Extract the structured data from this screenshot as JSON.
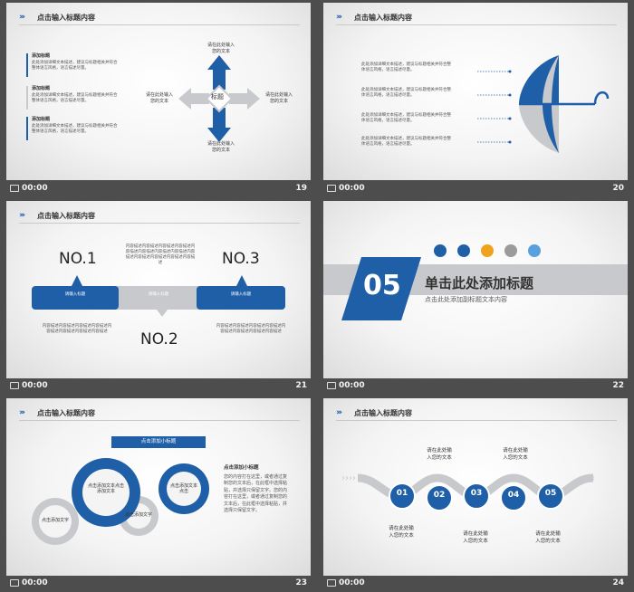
{
  "header_title": "点击输入标题内容",
  "time_label": "00:00",
  "slide19": {
    "number": "19",
    "items": [
      {
        "title": "添加标题",
        "text": "此处添加详细文本描述，建议与标题相关并符合整体语言风格，语言描述尽量。"
      },
      {
        "title": "添加标题",
        "text": "此处添加详细文本描述，建议与标题相关并符合整体语言风格，语言描述尽量。"
      },
      {
        "title": "添加标题",
        "text": "此处添加详细文本描述，建议与标题相关并符合整体语言风格，语言描述尽量。"
      }
    ],
    "center": "标题",
    "top": "请在此处输入您的文本",
    "left": "请在此处输入您的文本",
    "right": "请在此处输入您的文本",
    "bottom": "请在此处输入您的文本"
  },
  "slide20": {
    "number": "20",
    "items": [
      "此处添加详细文本描述，建议与标题相关并符合整体语言风格，语言描述尽量。",
      "此处添加详细文本描述，建议与标题相关并符合整体语言风格，语言描述尽量。",
      "此处添加详细文本描述，建议与标题相关并符合整体语言风格，语言描述尽量。",
      "此处添加详细文本描述，建议与标题相关并符合整体语言风格，语言描述尽量。"
    ]
  },
  "slide21": {
    "number": "21",
    "no1": "NO.1",
    "no2": "NO.2",
    "no3": "NO.3",
    "bar1": "请输入标题",
    "bar2": "请输入标题",
    "bar3": "请输入标题",
    "text_top": "内容描述内容描述内容描述内容描述内容描述内容描述内容描述内容描述内容描述内容描述内容描述内容描述内容描述",
    "text_left": "内容描述内容描述内容描述内容描述内容描述内容描述内容描述内容描述",
    "text_right": "内容描述内容描述内容描述内容描述内容描述内容描述内容描述内容描述"
  },
  "slide22": {
    "number": "22",
    "section_num": "05",
    "title": "单击此处添加标题",
    "subtitle": "点击此处添加副标题文本内容",
    "icons": [
      "chart-icon",
      "pie-icon",
      "search-icon",
      "phone-icon",
      "calendar-icon"
    ]
  },
  "slide23": {
    "number": "23",
    "banner": "点击添加小标题",
    "gear_big": "点击添加文本点击添加文本",
    "gear_right": "点击添加文本点击",
    "gear_left": "点击添加文字",
    "gear_small": "点击添加文字",
    "side_title": "点击添加小标题",
    "side_text": "您的内容打在这里，或者通过复制您的文本后，在此框中选择粘贴，并选择只保留文字。您的内容打在这里，或者通过复制您的文本后，在此框中选择粘贴，并选择只保留文字。"
  },
  "slide24": {
    "number": "24",
    "steps": [
      "01",
      "02",
      "03",
      "04",
      "05"
    ],
    "text": "请在此处输入您的文本",
    "text_lines": [
      "请在此处输",
      "入您的文本"
    ]
  },
  "colors": {
    "blue": "#1f5fa8",
    "gray": "#c8c9cc",
    "orange": "#f0a21e"
  }
}
